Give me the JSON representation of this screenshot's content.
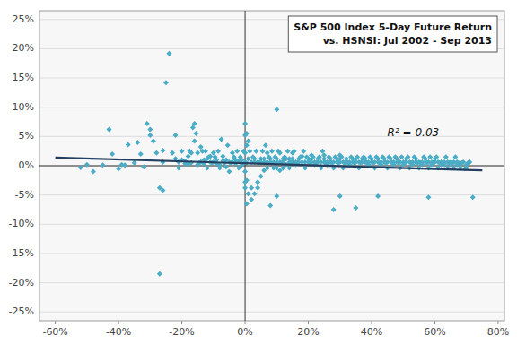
{
  "chart_data": {
    "type": "scatter",
    "title": "S&P 500 Index 5-Day Future Return",
    "subtitle": "vs. HSNSI: Jul 2002 - Sep 2013",
    "annotations": [
      {
        "text": "R² = 0.03",
        "x": 0.45,
        "y": 0.05
      }
    ],
    "xlim": [
      -0.65,
      0.82
    ],
    "ylim": [
      -0.265,
      0.265
    ],
    "xticks": [
      {
        "value": -0.6,
        "label": "-60%"
      },
      {
        "value": -0.4,
        "label": "-40%"
      },
      {
        "value": -0.2,
        "label": "-20%"
      },
      {
        "value": 0.0,
        "label": "0%"
      },
      {
        "value": 0.2,
        "label": "20%"
      },
      {
        "value": 0.4,
        "label": "40%"
      },
      {
        "value": 0.6,
        "label": "60%"
      },
      {
        "value": 0.8,
        "label": "80%"
      }
    ],
    "yticks": [
      {
        "value": -0.25,
        "label": "-25%"
      },
      {
        "value": -0.2,
        "label": "-20%"
      },
      {
        "value": -0.15,
        "label": "-15%"
      },
      {
        "value": -0.1,
        "label": "-10%"
      },
      {
        "value": -0.05,
        "label": "-5%"
      },
      {
        "value": 0.0,
        "label": "0%"
      },
      {
        "value": 0.05,
        "label": "5%"
      },
      {
        "value": 0.1,
        "label": "10%"
      },
      {
        "value": 0.15,
        "label": "15%"
      },
      {
        "value": 0.2,
        "label": "20%"
      },
      {
        "value": 0.25,
        "label": "25%"
      }
    ],
    "grid": "y",
    "series": [
      {
        "type": "scatter",
        "marker": "diamond",
        "color": "#4bacc6",
        "x": [
          -0.52,
          -0.5,
          -0.48,
          -0.45,
          -0.43,
          -0.42,
          -0.4,
          -0.39,
          -0.38,
          -0.37,
          -0.35,
          -0.34,
          -0.33,
          -0.32,
          -0.31,
          -0.3,
          -0.3,
          -0.29,
          -0.28,
          -0.27,
          -0.26,
          -0.26,
          -0.25,
          -0.24,
          -0.23,
          -0.22,
          -0.22,
          -0.21,
          -0.21,
          -0.2,
          -0.2,
          -0.19,
          -0.19,
          -0.18,
          -0.18,
          -0.17,
          -0.17,
          -0.16,
          -0.16,
          -0.15,
          -0.15,
          -0.14,
          -0.14,
          -0.13,
          -0.13,
          -0.12,
          -0.12,
          -0.11,
          -0.11,
          -0.1,
          -0.1,
          -0.09,
          -0.09,
          -0.08,
          -0.08,
          -0.07,
          -0.07,
          -0.06,
          -0.06,
          -0.05,
          -0.05,
          -0.04,
          -0.04,
          -0.03,
          -0.03,
          -0.02,
          -0.02,
          -0.01,
          -0.01,
          0.0,
          0.0,
          0.0,
          0.0,
          0.0,
          0.0,
          0.0,
          0.01,
          0.01,
          0.01,
          0.02,
          0.02,
          0.02,
          0.03,
          0.03,
          0.03,
          0.04,
          0.04,
          0.04,
          0.05,
          0.05,
          0.05,
          0.06,
          0.06,
          0.06,
          0.07,
          0.07,
          0.07,
          0.08,
          0.08,
          0.09,
          0.09,
          0.1,
          0.1,
          0.1,
          0.1,
          0.11,
          0.11,
          0.11,
          0.12,
          0.12,
          0.12,
          0.13,
          0.13,
          0.14,
          0.14,
          0.14,
          0.15,
          0.15,
          0.15,
          0.16,
          0.16,
          0.17,
          0.17,
          0.18,
          0.18,
          0.19,
          0.19,
          0.2,
          0.2,
          0.21,
          0.21,
          0.21,
          0.22,
          0.22,
          0.23,
          0.23,
          0.24,
          0.24,
          0.25,
          0.25,
          0.25,
          0.26,
          0.26,
          0.27,
          0.27,
          0.28,
          0.28,
          0.29,
          0.29,
          0.3,
          0.3,
          0.3,
          0.31,
          0.31,
          0.32,
          0.32,
          0.33,
          0.33,
          0.34,
          0.34,
          0.35,
          0.35,
          0.36,
          0.36,
          0.37,
          0.37,
          0.38,
          0.38,
          0.39,
          0.39,
          0.4,
          0.4,
          0.41,
          0.41,
          0.42,
          0.42,
          0.43,
          0.43,
          0.44,
          0.44,
          0.45,
          0.45,
          0.46,
          0.46,
          0.47,
          0.47,
          0.48,
          0.48,
          0.49,
          0.49,
          0.5,
          0.5,
          0.51,
          0.51,
          0.52,
          0.52,
          0.53,
          0.53,
          0.54,
          0.54,
          0.55,
          0.55,
          0.56,
          0.56,
          0.57,
          0.57,
          0.58,
          0.58,
          0.58,
          0.59,
          0.59,
          0.6,
          0.6,
          0.61,
          0.61,
          0.62,
          0.62,
          0.63,
          0.63,
          0.64,
          0.64,
          0.65,
          0.65,
          0.66,
          0.66,
          0.67,
          0.67,
          0.68,
          0.68,
          0.69,
          0.7,
          0.7,
          0.71,
          0.72,
          0.35,
          0.08,
          0.1,
          0.28,
          0.42,
          0.3,
          -0.27,
          -0.26,
          0.005,
          0.005,
          0.005,
          0.005,
          0.005,
          -0.005,
          0.015,
          -0.015,
          0.025,
          -0.025,
          0.035,
          -0.035,
          0.045,
          -0.045,
          0.055,
          -0.055,
          0.065,
          -0.065,
          0.075,
          -0.075,
          0.085,
          -0.085,
          0.095,
          -0.095,
          0.105,
          -0.105,
          0.115,
          -0.115,
          0.125,
          -0.125,
          0.135,
          -0.135,
          0.145,
          -0.145,
          0.155,
          -0.155,
          0.165,
          -0.165,
          0.175,
          -0.175,
          0.185,
          -0.185,
          0.195,
          0.205,
          0.215,
          0.225,
          0.235,
          0.245,
          0.255,
          0.265,
          0.275,
          0.285,
          0.295,
          0.305,
          0.315,
          0.325,
          0.335,
          0.345,
          0.355,
          0.365,
          0.375,
          0.385,
          0.395,
          0.405,
          0.415,
          0.425,
          0.435,
          0.445,
          0.455,
          0.465,
          0.475,
          0.485,
          0.495,
          0.505,
          0.515,
          0.525,
          0.535,
          0.545,
          0.555,
          0.565,
          0.575,
          0.585,
          0.595,
          0.605,
          0.615,
          0.625,
          0.635,
          0.645,
          0.655,
          0.665,
          0.675,
          0.685,
          0.695,
          0.705
        ],
        "values": [
          -0.003,
          0.002,
          -0.01,
          0.001,
          0.062,
          0.02,
          -0.005,
          0.002,
          0.001,
          0.036,
          0.005,
          0.04,
          0.02,
          -0.002,
          0.072,
          0.062,
          0.052,
          0.042,
          0.022,
          -0.038,
          0.006,
          0.026,
          0.142,
          0.192,
          0.022,
          0.052,
          0.012,
          0.006,
          -0.004,
          0.01,
          0.025,
          0.008,
          0.004,
          0.003,
          0.016,
          0.005,
          0.022,
          0.072,
          0.042,
          0.022,
          0.002,
          0.006,
          0.032,
          0.01,
          0.003,
          -0.004,
          0.012,
          0.006,
          0.016,
          0.006,
          0.022,
          0.01,
          0.004,
          0.001,
          -0.004,
          0.008,
          0.016,
          -0.002,
          0.01,
          0.006,
          -0.01,
          0.006,
          0.022,
          0.01,
          0.004,
          0.008,
          -0.004,
          0.01,
          0.001,
          0.072,
          0.052,
          -0.01,
          0.022,
          -0.038,
          -0.028,
          0.006,
          0.042,
          -0.048,
          0.012,
          -0.038,
          0.006,
          -0.058,
          -0.048,
          0.012,
          0.006,
          -0.028,
          0.006,
          -0.038,
          0.006,
          0.012,
          -0.018,
          0.006,
          0.012,
          -0.008,
          0.006,
          0.022,
          -0.004,
          0.006,
          0.012,
          0.006,
          -0.004,
          0.012,
          -0.004,
          0.006,
          0.096,
          0.022,
          -0.008,
          0.006,
          0.012,
          0.006,
          -0.004,
          0.012,
          0.002,
          0.006,
          0.012,
          -0.004,
          0.006,
          0.012,
          0.022,
          0.006,
          0.002,
          0.012,
          0.006,
          0.006,
          0.016,
          0.006,
          -0.004,
          0.012,
          0.006,
          0.006,
          0.012,
          0.018,
          0.006,
          0.002,
          0.006,
          0.012,
          0.006,
          -0.004,
          0.012,
          0.006,
          0.018,
          0.006,
          0.002,
          0.006,
          0.012,
          0.006,
          -0.004,
          0.012,
          0.006,
          0.006,
          0.012,
          0.018,
          0.006,
          -0.004,
          0.006,
          0.012,
          0.006,
          0.002,
          0.012,
          0.006,
          0.006,
          0.012,
          0.006,
          -0.004,
          0.012,
          0.006,
          0.006,
          0.012,
          0.002,
          0.006,
          0.006,
          0.012,
          0.006,
          -0.004,
          0.012,
          0.006,
          0.006,
          0.002,
          0.006,
          0.012,
          0.006,
          -0.004,
          0.012,
          0.006,
          0.006,
          0.002,
          0.006,
          0.012,
          0.006,
          -0.004,
          0.002,
          0.006,
          0.006,
          0.012,
          0.006,
          -0.004,
          0.002,
          0.006,
          0.006,
          0.012,
          0.006,
          -0.004,
          0.002,
          0.006,
          0.006,
          0.012,
          0.006,
          -0.004,
          -0.054,
          0.002,
          0.006,
          0.006,
          0.012,
          0.006,
          -0.004,
          0.002,
          0.006,
          0.006,
          0.002,
          0.006,
          -0.004,
          0.002,
          0.006,
          0.006,
          -0.004,
          0.002,
          0.006,
          -0.004,
          0.002,
          0.006,
          -0.004,
          0.002,
          0.006,
          -0.054,
          -0.072,
          -0.068,
          -0.052,
          -0.075,
          -0.052,
          -0.052,
          -0.185,
          -0.042,
          -0.065,
          0.005,
          0.035,
          -0.025,
          0.055,
          0.025,
          0.025,
          0.015,
          0.015,
          0.025,
          0.025,
          0.015,
          0.005,
          0.005,
          0.025,
          0.035,
          0.035,
          0.005,
          0.015,
          0.045,
          0.025,
          0.025,
          0.015,
          0.015,
          0.025,
          0.005,
          0.005,
          0.015,
          0.015,
          0.025,
          0.025,
          0.025,
          0.005,
          0.005,
          0.025,
          0.055,
          0.005,
          0.065,
          0.015,
          0.025,
          0.025,
          0.005,
          0.015,
          0.005,
          0.015,
          0.005,
          0.015,
          0.025,
          0.005,
          0.015,
          0.005,
          0.015,
          0.005,
          0.015,
          0.005,
          0.005,
          0.015,
          0.005,
          0.015,
          0.005,
          0.015,
          0.005,
          0.015,
          0.005,
          0.015,
          0.005,
          0.015,
          0.005,
          0.015,
          0.005,
          0.015,
          0.005,
          0.015,
          0.005,
          0.015,
          0.005,
          0.015,
          0.005,
          0.005,
          0.015,
          0.005,
          0.015,
          0.005,
          0.015,
          0.005,
          0.005,
          0.015,
          0.005,
          0.005,
          0.015,
          0.005,
          0.005,
          -0.005,
          0.005
        ]
      },
      {
        "type": "line",
        "color": "#243f60",
        "x": [
          -0.6,
          0.75
        ],
        "values": [
          0.014,
          -0.008
        ]
      }
    ]
  }
}
